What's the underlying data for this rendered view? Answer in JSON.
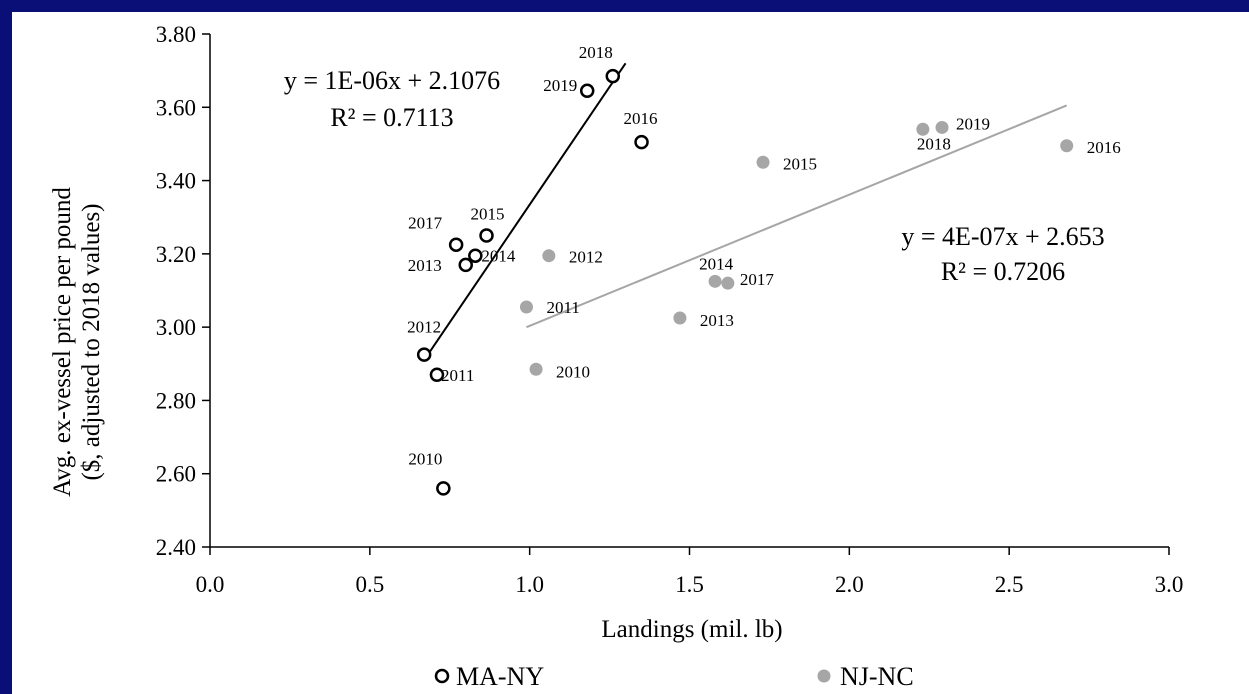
{
  "chart_data": {
    "type": "scatter",
    "title": "",
    "xlabel": "Landings (mil. lb)",
    "ylabel": [
      "Avg. ex-vessel price per pound",
      "($, adjusted to 2018 values)"
    ],
    "xlim": [
      0.0,
      3.0
    ],
    "ylim": [
      2.4,
      3.8
    ],
    "x_ticks": [
      "0.0",
      "0.5",
      "1.0",
      "1.5",
      "2.0",
      "2.5",
      "3.0"
    ],
    "y_ticks": [
      "2.40",
      "2.60",
      "2.80",
      "3.00",
      "3.20",
      "3.40",
      "3.60",
      "3.80"
    ],
    "grid": false,
    "legend_position": "bottom",
    "series": [
      {
        "name": "MA-NY",
        "marker": "hollow-circle",
        "color": "#000000",
        "points": [
          {
            "label": "2010",
            "x": 0.73,
            "y": 2.56
          },
          {
            "label": "2011",
            "x": 0.71,
            "y": 2.87
          },
          {
            "label": "2012",
            "x": 0.67,
            "y": 2.925
          },
          {
            "label": "2013",
            "x": 0.8,
            "y": 3.17
          },
          {
            "label": "2014",
            "x": 0.83,
            "y": 3.195
          },
          {
            "label": "2015",
            "x": 0.865,
            "y": 3.25
          },
          {
            "label": "2016",
            "x": 1.35,
            "y": 3.505
          },
          {
            "label": "2017",
            "x": 0.77,
            "y": 3.225
          },
          {
            "label": "2018",
            "x": 1.26,
            "y": 3.685
          },
          {
            "label": "2019",
            "x": 1.18,
            "y": 3.645
          }
        ],
        "trendline": {
          "x": [
            0.67,
            1.3
          ],
          "y": [
            2.91,
            3.72
          ],
          "equation": "y = 1E-06x + 2.1076",
          "r2": "R² = 0.7113"
        }
      },
      {
        "name": "NJ-NC",
        "marker": "filled-circle",
        "color": "#a6a6a6",
        "points": [
          {
            "label": "2010",
            "x": 1.02,
            "y": 2.885
          },
          {
            "label": "2011",
            "x": 0.99,
            "y": 3.055
          },
          {
            "label": "2012",
            "x": 1.06,
            "y": 3.195
          },
          {
            "label": "2013",
            "x": 1.47,
            "y": 3.025
          },
          {
            "label": "2014",
            "x": 1.58,
            "y": 3.125
          },
          {
            "label": "2015",
            "x": 1.73,
            "y": 3.45
          },
          {
            "label": "2016",
            "x": 2.68,
            "y": 3.495
          },
          {
            "label": "2017",
            "x": 1.62,
            "y": 3.12
          },
          {
            "label": "2018",
            "x": 2.23,
            "y": 3.54
          },
          {
            "label": "2019",
            "x": 2.29,
            "y": 3.545
          }
        ],
        "trendline": {
          "x": [
            0.99,
            2.68
          ],
          "y": [
            3.0,
            3.605
          ],
          "equation": "y = 4E-07x + 2.653",
          "r2": "R² = 0.7206"
        }
      }
    ]
  },
  "colors": {
    "background": "#0a0f78",
    "plot": "#ffffff"
  }
}
